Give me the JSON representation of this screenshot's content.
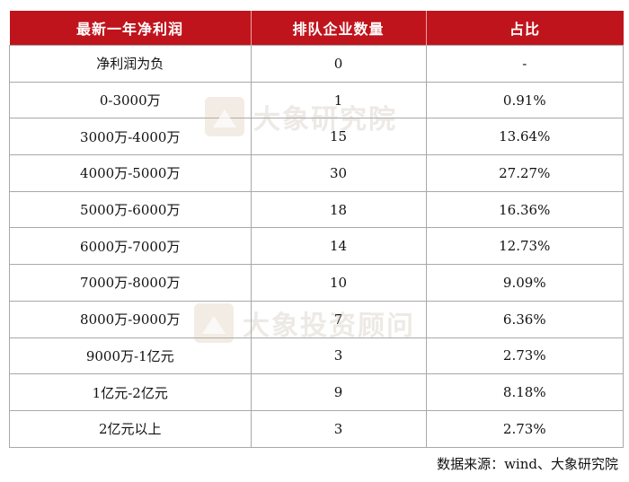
{
  "table": {
    "headers": [
      "最新一年净利润",
      "排队企业数量",
      "占比"
    ],
    "rows": [
      [
        "净利润为负",
        "0",
        "-"
      ],
      [
        "0-3000万",
        "1",
        "0.91%"
      ],
      [
        "3000万-4000万",
        "15",
        "13.64%"
      ],
      [
        "4000万-5000万",
        "30",
        "27.27%"
      ],
      [
        "5000万-6000万",
        "18",
        "16.36%"
      ],
      [
        "6000万-7000万",
        "14",
        "12.73%"
      ],
      [
        "7000万-8000万",
        "10",
        "9.09%"
      ],
      [
        "8000万-9000万",
        "7",
        "6.36%"
      ],
      [
        "9000万-1亿元",
        "3",
        "2.73%"
      ],
      [
        "1亿元-2亿元",
        "9",
        "8.18%"
      ],
      [
        "2亿元以上",
        "3",
        "2.73%"
      ]
    ]
  },
  "source": "数据来源：wind、大象研究院",
  "watermarks": {
    "top": "大象研究院",
    "bottom": "大象投资顾问"
  },
  "colors": {
    "header_bg": "#c0141c",
    "header_text": "#ffffff"
  }
}
